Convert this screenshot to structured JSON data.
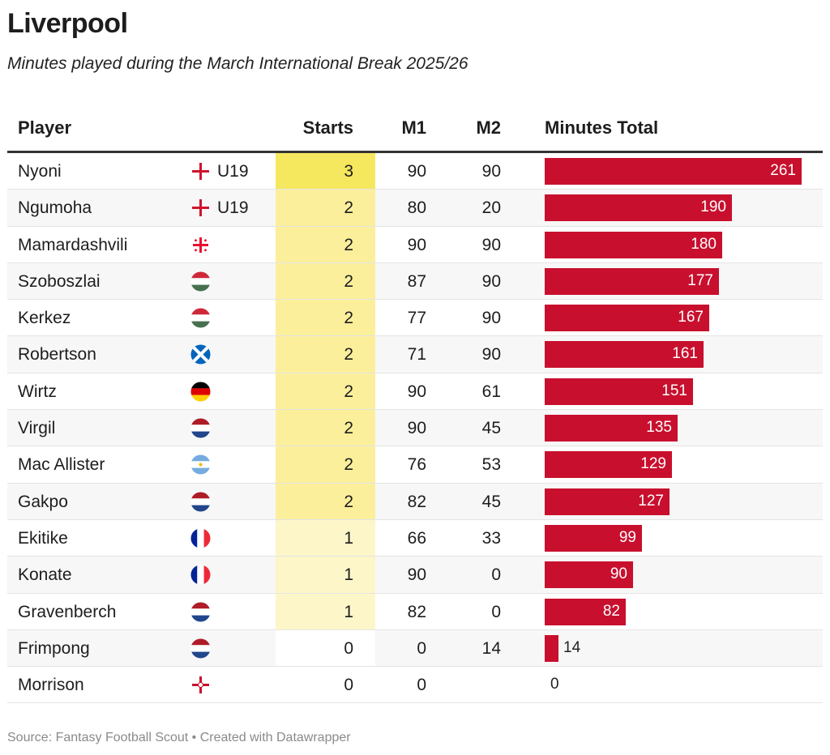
{
  "title": "Liverpool",
  "subtitle": "Minutes played during the March International Break 2025/26",
  "source": "Source: Fantasy Football Scout • Created with Datawrapper",
  "colors": {
    "bar": "#c8102e",
    "starts_3": "#f6e85e",
    "starts_2": "#fbef9c",
    "starts_1": "#fdf6c9",
    "starts_0": "#ffffff"
  },
  "chart_data": {
    "type": "table",
    "columns": [
      "Player",
      "Starts",
      "M1",
      "M2",
      "Minutes Total"
    ],
    "rows": [
      {
        "player": "Nyoni",
        "flag": "england",
        "note": "U19",
        "starts": "3",
        "m1": "90",
        "m2": "90",
        "total": "261"
      },
      {
        "player": "Ngumoha",
        "flag": "england",
        "note": "U19",
        "starts": "2",
        "m1": "80",
        "m2": "20",
        "total": "190"
      },
      {
        "player": "Mamardashvili",
        "flag": "georgia",
        "note": "",
        "starts": "2",
        "m1": "90",
        "m2": "90",
        "total": "180"
      },
      {
        "player": "Szoboszlai",
        "flag": "hungary",
        "note": "",
        "starts": "2",
        "m1": "87",
        "m2": "90",
        "total": "177"
      },
      {
        "player": "Kerkez",
        "flag": "hungary",
        "note": "",
        "starts": "2",
        "m1": "77",
        "m2": "90",
        "total": "167"
      },
      {
        "player": "Robertson",
        "flag": "scotland",
        "note": "",
        "starts": "2",
        "m1": "71",
        "m2": "90",
        "total": "161"
      },
      {
        "player": "Wirtz",
        "flag": "germany",
        "note": "",
        "starts": "2",
        "m1": "90",
        "m2": "61",
        "total": "151"
      },
      {
        "player": "Virgil",
        "flag": "netherlands",
        "note": "",
        "starts": "2",
        "m1": "90",
        "m2": "45",
        "total": "135"
      },
      {
        "player": "Mac Allister",
        "flag": "argentina",
        "note": "",
        "starts": "2",
        "m1": "76",
        "m2": "53",
        "total": "129"
      },
      {
        "player": "Gakpo",
        "flag": "netherlands",
        "note": "",
        "starts": "2",
        "m1": "82",
        "m2": "45",
        "total": "127"
      },
      {
        "player": "Ekitike",
        "flag": "france",
        "note": "",
        "starts": "1",
        "m1": "66",
        "m2": "33",
        "total": "99"
      },
      {
        "player": "Konate",
        "flag": "france",
        "note": "",
        "starts": "1",
        "m1": "90",
        "m2": "0",
        "total": "90"
      },
      {
        "player": "Gravenberch",
        "flag": "netherlands",
        "note": "",
        "starts": "1",
        "m1": "82",
        "m2": "0",
        "total": "82"
      },
      {
        "player": "Frimpong",
        "flag": "netherlands",
        "note": "",
        "starts": "0",
        "m1": "0",
        "m2": "14",
        "total": "14"
      },
      {
        "player": "Morrison",
        "flag": "northern-ireland",
        "note": "",
        "starts": "0",
        "m1": "0",
        "m2": "",
        "total": "0"
      }
    ],
    "bar_max": 261
  }
}
